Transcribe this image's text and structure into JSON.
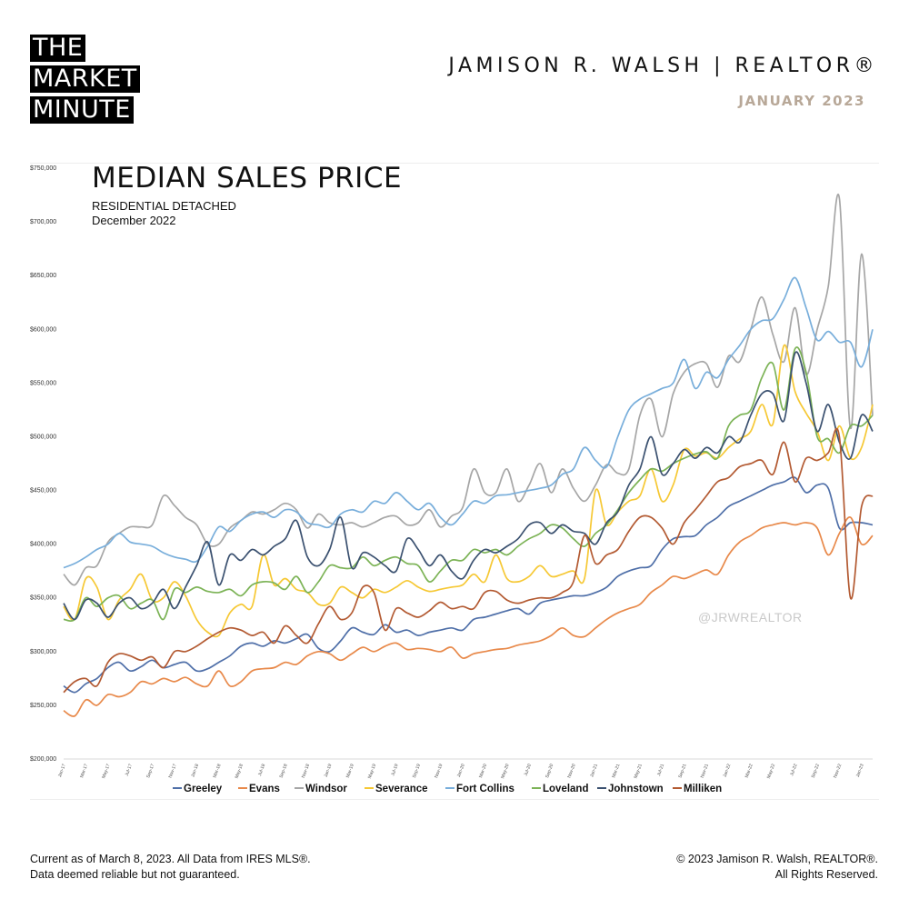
{
  "brand": {
    "logo_lines": [
      "THE",
      "MARKET",
      "MINUTE"
    ],
    "agent": "JAMISON R. WALSH | REALTOR®",
    "month": "JANUARY 2023",
    "watermark": "@JRWREALTOR"
  },
  "footer": {
    "left_line1": "Current as of March 8, 2023. All Data from IRES MLS®.",
    "left_line2": "Data deemed reliable but not guaranteed.",
    "right_line1": "© 2023 Jamison R. Walsh, REALTOR®.",
    "right_line2": "All Rights Reserved."
  },
  "chart_data": {
    "type": "line",
    "title": "MEDIAN SALES PRICE",
    "subtitle": "RESIDENTIAL DETACHED",
    "period": "December 2022",
    "ylim": [
      200000,
      750000
    ],
    "yticks": [
      200000,
      250000,
      300000,
      350000,
      400000,
      450000,
      500000,
      550000,
      600000,
      650000,
      700000,
      750000
    ],
    "ytick_labels": [
      "$200,000",
      "$250,000",
      "$300,000",
      "$350,000",
      "$400,000",
      "$450,000",
      "$500,000",
      "$550,000",
      "$600,000",
      "$650,000",
      "$700,000",
      "$750,000"
    ],
    "categories": [
      "Jan-17",
      "Feb-17",
      "Mar-17",
      "Apr-17",
      "May-17",
      "Jun-17",
      "Jul-17",
      "Aug-17",
      "Sep-17",
      "Oct-17",
      "Nov-17",
      "Dec-17",
      "Jan-18",
      "Feb-18",
      "Mar-18",
      "Apr-18",
      "May-18",
      "Jun-18",
      "Jul-18",
      "Aug-18",
      "Sep-18",
      "Oct-18",
      "Nov-18",
      "Dec-18",
      "Jan-19",
      "Feb-19",
      "Mar-19",
      "Apr-19",
      "May-19",
      "Jun-19",
      "Jul-19",
      "Aug-19",
      "Sep-19",
      "Oct-19",
      "Nov-19",
      "Dec-19",
      "Jan-20",
      "Feb-20",
      "Mar-20",
      "Apr-20",
      "May-20",
      "Jun-20",
      "Jul-20",
      "Aug-20",
      "Sep-20",
      "Oct-20",
      "Nov-20",
      "Dec-20",
      "Jan-21",
      "Feb-21",
      "Mar-21",
      "Apr-21",
      "May-21",
      "Jun-21",
      "Jul-21",
      "Aug-21",
      "Sep-21",
      "Oct-21",
      "Nov-21",
      "Dec-21",
      "Jan-22",
      "Feb-22",
      "Mar-22",
      "Apr-22",
      "May-22",
      "Jun-22",
      "Jul-22",
      "Aug-22",
      "Sep-22",
      "Oct-22",
      "Nov-22",
      "Dec-22",
      "Jan-23",
      "Feb-23"
    ],
    "xtick_labels": [
      "Jan-17",
      "Mar-17",
      "May-17",
      "Jul-17",
      "Sep-17",
      "Nov-17",
      "Jan-18",
      "Mar-18",
      "May-18",
      "Jul-18",
      "Sep-18",
      "Nov-18",
      "Jan-19",
      "Mar-19",
      "May-19",
      "Jul-19",
      "Sep-19",
      "Nov-19",
      "Jan-20",
      "Mar-20",
      "May-20",
      "Jul-20",
      "Sep-20",
      "Nov-20",
      "Jan-21",
      "Mar-21",
      "May-21",
      "Jul-21",
      "Sep-21",
      "Nov-21",
      "Jan-22",
      "Mar-22",
      "May-22",
      "Jul-22",
      "Sep-22",
      "Nov-22",
      "Jan-23"
    ],
    "series": [
      {
        "name": "Greeley",
        "color": "#4f6fa8",
        "values": [
          268000,
          262000,
          270000,
          275000,
          285000,
          290000,
          282000,
          286000,
          292000,
          285000,
          288000,
          290000,
          282000,
          284000,
          290000,
          296000,
          305000,
          308000,
          305000,
          310000,
          308000,
          312000,
          316000,
          303000,
          300000,
          310000,
          322000,
          318000,
          316000,
          325000,
          318000,
          320000,
          315000,
          318000,
          320000,
          322000,
          320000,
          330000,
          332000,
          335000,
          338000,
          340000,
          335000,
          345000,
          348000,
          350000,
          352000,
          352000,
          355000,
          360000,
          370000,
          375000,
          378000,
          380000,
          395000,
          405000,
          407000,
          408000,
          418000,
          425000,
          435000,
          440000,
          445000,
          450000,
          455000,
          458000,
          462000,
          448000,
          455000,
          452000,
          415000,
          420000,
          420000,
          418000
        ]
      },
      {
        "name": "Evans",
        "color": "#e8894a",
        "values": [
          245000,
          240000,
          255000,
          250000,
          260000,
          258000,
          262000,
          272000,
          270000,
          275000,
          272000,
          276000,
          270000,
          268000,
          282000,
          268000,
          272000,
          282000,
          284000,
          285000,
          290000,
          288000,
          296000,
          300000,
          298000,
          292000,
          298000,
          304000,
          300000,
          305000,
          308000,
          302000,
          303000,
          302000,
          300000,
          304000,
          294000,
          298000,
          300000,
          302000,
          303000,
          306000,
          308000,
          310000,
          315000,
          322000,
          315000,
          314000,
          322000,
          330000,
          336000,
          340000,
          344000,
          355000,
          362000,
          370000,
          368000,
          372000,
          376000,
          372000,
          390000,
          402000,
          408000,
          415000,
          418000,
          420000,
          418000,
          420000,
          415000,
          390000,
          410000,
          425000,
          400000,
          408000
        ]
      },
      {
        "name": "Windsor",
        "color": "#a6a6a6",
        "values": [
          372000,
          362000,
          378000,
          380000,
          402000,
          410000,
          416000,
          416000,
          418000,
          445000,
          436000,
          425000,
          418000,
          400000,
          400000,
          415000,
          422000,
          430000,
          428000,
          432000,
          438000,
          432000,
          415000,
          428000,
          420000,
          418000,
          420000,
          416000,
          420000,
          425000,
          426000,
          418000,
          420000,
          432000,
          416000,
          426000,
          434000,
          470000,
          448000,
          448000,
          470000,
          440000,
          455000,
          475000,
          448000,
          470000,
          452000,
          440000,
          455000,
          474000,
          466000,
          470000,
          520000,
          535000,
          500000,
          540000,
          560000,
          568000,
          568000,
          546000,
          575000,
          570000,
          600000,
          630000,
          595000,
          570000,
          620000,
          558000,
          600000,
          640000,
          722000,
          508000,
          670000,
          520000
        ]
      },
      {
        "name": "Severance",
        "color": "#f6c834",
        "values": [
          342000,
          330000,
          368000,
          360000,
          330000,
          348000,
          358000,
          372000,
          348000,
          350000,
          365000,
          352000,
          330000,
          318000,
          315000,
          336000,
          344000,
          342000,
          390000,
          362000,
          368000,
          358000,
          355000,
          344000,
          345000,
          360000,
          355000,
          350000,
          358000,
          355000,
          360000,
          366000,
          360000,
          356000,
          358000,
          360000,
          362000,
          372000,
          365000,
          390000,
          368000,
          365000,
          370000,
          380000,
          370000,
          372000,
          375000,
          368000,
          450000,
          418000,
          430000,
          440000,
          445000,
          470000,
          440000,
          455000,
          488000,
          482000,
          485000,
          480000,
          490000,
          498000,
          505000,
          530000,
          512000,
          585000,
          542000,
          522000,
          505000,
          478000,
          510000,
          480000,
          490000,
          530000
        ]
      },
      {
        "name": "Fort Collins",
        "color": "#78aedb",
        "values": [
          378000,
          382000,
          388000,
          395000,
          400000,
          410000,
          402000,
          400000,
          398000,
          392000,
          388000,
          386000,
          384000,
          398000,
          416000,
          412000,
          422000,
          428000,
          430000,
          425000,
          432000,
          430000,
          420000,
          418000,
          416000,
          428000,
          432000,
          430000,
          440000,
          438000,
          448000,
          440000,
          432000,
          438000,
          425000,
          418000,
          428000,
          440000,
          438000,
          445000,
          446000,
          448000,
          450000,
          452000,
          455000,
          465000,
          470000,
          490000,
          478000,
          472000,
          500000,
          525000,
          535000,
          540000,
          545000,
          550000,
          572000,
          545000,
          560000,
          555000,
          572000,
          585000,
          600000,
          608000,
          610000,
          628000,
          648000,
          620000,
          590000,
          598000,
          588000,
          588000,
          565000,
          600000
        ]
      },
      {
        "name": "Loveland",
        "color": "#7cb356",
        "values": [
          330000,
          330000,
          350000,
          342000,
          350000,
          352000,
          340000,
          345000,
          348000,
          330000,
          358000,
          355000,
          360000,
          356000,
          355000,
          358000,
          352000,
          362000,
          365000,
          364000,
          358000,
          370000,
          355000,
          365000,
          380000,
          378000,
          378000,
          388000,
          380000,
          385000,
          388000,
          382000,
          380000,
          365000,
          375000,
          385000,
          385000,
          395000,
          392000,
          395000,
          390000,
          398000,
          405000,
          410000,
          418000,
          415000,
          405000,
          398000,
          410000,
          418000,
          432000,
          448000,
          460000,
          470000,
          468000,
          475000,
          480000,
          484000,
          486000,
          480000,
          510000,
          520000,
          525000,
          555000,
          568000,
          525000,
          582000,
          560000,
          500000,
          498000,
          485000,
          510000,
          510000,
          520000
        ]
      },
      {
        "name": "Johnstown",
        "color": "#3b5170",
        "values": [
          345000,
          330000,
          348000,
          345000,
          332000,
          345000,
          350000,
          340000,
          345000,
          358000,
          340000,
          360000,
          380000,
          402000,
          362000,
          390000,
          385000,
          395000,
          390000,
          398000,
          405000,
          422000,
          388000,
          380000,
          395000,
          425000,
          378000,
          392000,
          388000,
          380000,
          375000,
          405000,
          395000,
          380000,
          390000,
          375000,
          368000,
          385000,
          395000,
          392000,
          398000,
          405000,
          418000,
          420000,
          410000,
          418000,
          412000,
          410000,
          400000,
          420000,
          430000,
          455000,
          470000,
          500000,
          465000,
          475000,
          488000,
          480000,
          490000,
          485000,
          500000,
          495000,
          520000,
          540000,
          540000,
          515000,
          578000,
          550000,
          505000,
          530000,
          495000,
          480000,
          520000,
          505000
        ]
      },
      {
        "name": "Milliken",
        "color": "#b35a32",
        "values": [
          262000,
          272000,
          275000,
          268000,
          290000,
          298000,
          296000,
          292000,
          295000,
          285000,
          300000,
          300000,
          305000,
          312000,
          318000,
          322000,
          320000,
          315000,
          318000,
          308000,
          324000,
          315000,
          308000,
          326000,
          342000,
          330000,
          336000,
          360000,
          355000,
          320000,
          340000,
          336000,
          332000,
          338000,
          346000,
          340000,
          342000,
          340000,
          355000,
          356000,
          348000,
          345000,
          348000,
          350000,
          350000,
          355000,
          365000,
          408000,
          382000,
          390000,
          395000,
          412000,
          425000,
          425000,
          415000,
          400000,
          420000,
          432000,
          445000,
          458000,
          462000,
          472000,
          475000,
          478000,
          465000,
          495000,
          458000,
          480000,
          478000,
          485000,
          500000,
          350000,
          435000,
          445000
        ]
      }
    ]
  }
}
